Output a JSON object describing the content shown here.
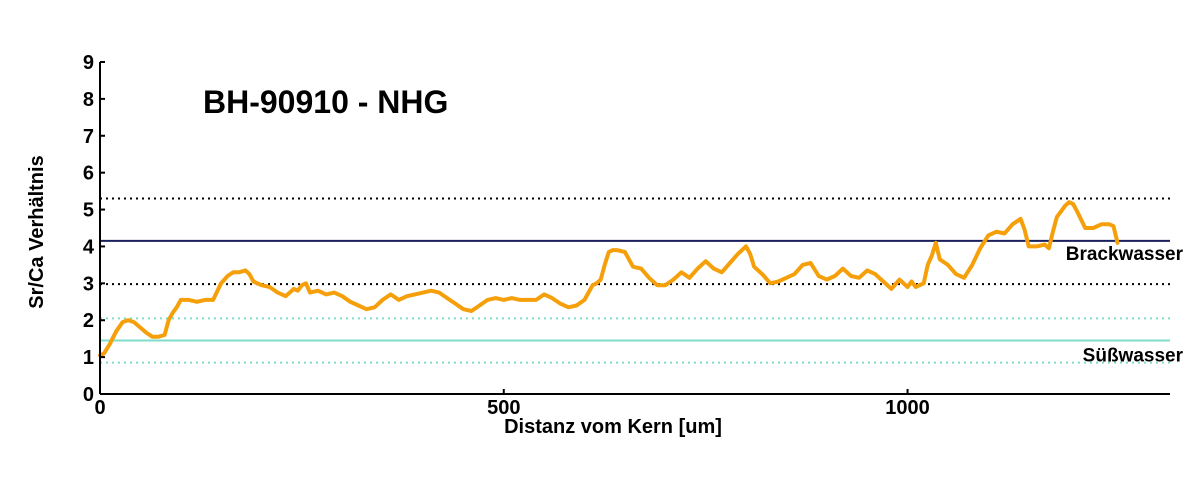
{
  "chart_data": {
    "type": "line",
    "title": "BH-90910 - NHG",
    "xlabel": "Distanz vom Kern [um]",
    "ylabel": "Sr/Ca Verhältnis",
    "xlim": [
      0,
      1325
    ],
    "ylim": [
      0,
      9
    ],
    "xticks": [
      0,
      500,
      1000
    ],
    "yticks": [
      0,
      1,
      2,
      3,
      4,
      5,
      6,
      7,
      8,
      9
    ],
    "grid": false,
    "series": [
      {
        "color": "#f5a00a",
        "x": [
          0,
          5,
          12,
          20,
          28,
          35,
          42,
          50,
          58,
          65,
          72,
          80,
          85,
          90,
          95,
          100,
          110,
          120,
          130,
          140,
          150,
          158,
          165,
          172,
          180,
          185,
          190,
          200,
          210,
          220,
          230,
          240,
          245,
          250,
          255,
          260,
          270,
          280,
          290,
          300,
          310,
          320,
          330,
          340,
          350,
          360,
          370,
          380,
          390,
          400,
          410,
          420,
          430,
          440,
          450,
          460,
          470,
          480,
          490,
          500,
          510,
          520,
          530,
          540,
          550,
          560,
          570,
          580,
          590,
          600,
          610,
          615,
          620,
          625,
          630,
          635,
          640,
          650,
          660,
          670,
          680,
          690,
          700,
          710,
          720,
          730,
          740,
          750,
          760,
          770,
          780,
          790,
          800,
          805,
          810,
          820,
          830,
          840,
          850,
          860,
          870,
          880,
          890,
          900,
          910,
          920,
          930,
          940,
          950,
          960,
          970,
          980,
          990,
          1000,
          1005,
          1010,
          1020,
          1025,
          1030,
          1035,
          1040,
          1050,
          1060,
          1070,
          1080,
          1090,
          1100,
          1110,
          1120,
          1130,
          1140,
          1145,
          1150,
          1160,
          1170,
          1175,
          1180,
          1185,
          1190,
          1195,
          1200,
          1205,
          1210,
          1220,
          1230,
          1240,
          1250,
          1255,
          1260
        ],
        "values": [
          1.05,
          1.1,
          1.35,
          1.7,
          1.95,
          2.0,
          1.95,
          1.8,
          1.65,
          1.55,
          1.55,
          1.6,
          2.0,
          2.2,
          2.35,
          2.55,
          2.55,
          2.5,
          2.55,
          2.55,
          3.0,
          3.2,
          3.3,
          3.3,
          3.35,
          3.25,
          3.05,
          2.95,
          2.9,
          2.75,
          2.65,
          2.85,
          2.8,
          2.95,
          3.0,
          2.75,
          2.8,
          2.7,
          2.75,
          2.65,
          2.5,
          2.4,
          2.3,
          2.35,
          2.55,
          2.7,
          2.55,
          2.65,
          2.7,
          2.75,
          2.8,
          2.75,
          2.6,
          2.45,
          2.3,
          2.25,
          2.4,
          2.55,
          2.6,
          2.55,
          2.6,
          2.55,
          2.55,
          2.55,
          2.7,
          2.6,
          2.45,
          2.35,
          2.4,
          2.55,
          2.95,
          3.0,
          3.1,
          3.5,
          3.85,
          3.9,
          3.9,
          3.85,
          3.45,
          3.4,
          3.15,
          2.95,
          2.95,
          3.1,
          3.3,
          3.15,
          3.4,
          3.6,
          3.4,
          3.3,
          3.55,
          3.8,
          4.0,
          3.8,
          3.45,
          3.25,
          3.0,
          3.05,
          3.15,
          3.25,
          3.5,
          3.55,
          3.2,
          3.1,
          3.2,
          3.4,
          3.2,
          3.15,
          3.35,
          3.25,
          3.05,
          2.85,
          3.1,
          2.9,
          3.05,
          2.9,
          3.0,
          3.5,
          3.75,
          4.1,
          3.65,
          3.5,
          3.25,
          3.15,
          3.5,
          3.95,
          4.3,
          4.4,
          4.35,
          4.6,
          4.75,
          4.45,
          4.0,
          4.0,
          4.05,
          3.95,
          4.4,
          4.8,
          4.95,
          5.1,
          5.2,
          5.15,
          4.95,
          4.5,
          4.5,
          4.6,
          4.6,
          4.55,
          4.1
        ]
      }
    ],
    "reference_lines": [
      {
        "y": 4.15,
        "style": "solid",
        "color": "#1a1f5e",
        "label": "Brackwasser"
      },
      {
        "y": 5.3,
        "style": "dotted",
        "color": "#000000",
        "label": ""
      },
      {
        "y": 2.98,
        "style": "dotted",
        "color": "#000000",
        "label": ""
      },
      {
        "y": 1.45,
        "style": "solid",
        "color": "#7fdcc8",
        "label": "Süßwasser"
      },
      {
        "y": 2.05,
        "style": "dotted",
        "color": "#7fdcc8",
        "label": ""
      },
      {
        "y": 0.85,
        "style": "dotted",
        "color": "#7fdcc8",
        "label": ""
      }
    ]
  }
}
